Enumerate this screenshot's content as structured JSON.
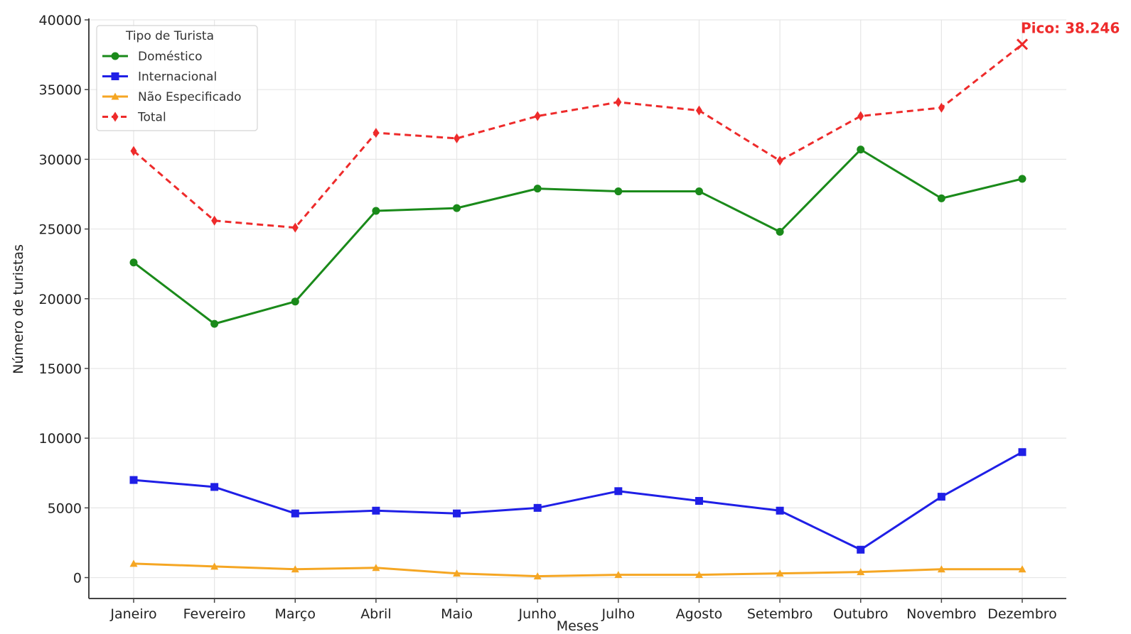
{
  "chart_data": {
    "type": "line",
    "title": "",
    "xlabel": "Meses",
    "ylabel": "Número de turistas",
    "ylim": [
      -1500,
      40000
    ],
    "yticks": [
      0,
      5000,
      10000,
      15000,
      20000,
      25000,
      30000,
      35000,
      40000
    ],
    "grid": true,
    "categories": [
      "Janeiro",
      "Fevereiro",
      "Março",
      "Abril",
      "Maio",
      "Junho",
      "Julho",
      "Agosto",
      "Setembro",
      "Outubro",
      "Novembro",
      "Dezembro"
    ],
    "legend": {
      "title": "Tipo de Turista",
      "placement": "top-left"
    },
    "series": [
      {
        "name": "Doméstico",
        "color": "#1a8a1a",
        "marker": "circle",
        "dashed": false,
        "values": [
          22600,
          18200,
          19800,
          26300,
          26500,
          27900,
          27700,
          27700,
          24800,
          30700,
          27200,
          28600
        ]
      },
      {
        "name": "Internacional",
        "color": "#1f1fe6",
        "marker": "square",
        "dashed": false,
        "values": [
          7000,
          6500,
          4600,
          4800,
          4600,
          5000,
          6200,
          5500,
          4800,
          2000,
          5800,
          9000
        ]
      },
      {
        "name": "Não Especificado",
        "color": "#f5a623",
        "marker": "triangle",
        "dashed": false,
        "values": [
          1000,
          800,
          600,
          700,
          300,
          100,
          200,
          200,
          300,
          400,
          600,
          600
        ]
      },
      {
        "name": "Total",
        "color": "#ee2b2b",
        "marker": "diamond",
        "dashed": true,
        "values": [
          30600,
          25600,
          25100,
          31900,
          31500,
          33100,
          34100,
          33500,
          29900,
          33100,
          33700,
          38246
        ]
      }
    ],
    "annotation": {
      "text": "Pico: 38.246",
      "series": "Total",
      "category": "Dezembro",
      "value": 38246,
      "color": "#ee2b2b"
    }
  }
}
